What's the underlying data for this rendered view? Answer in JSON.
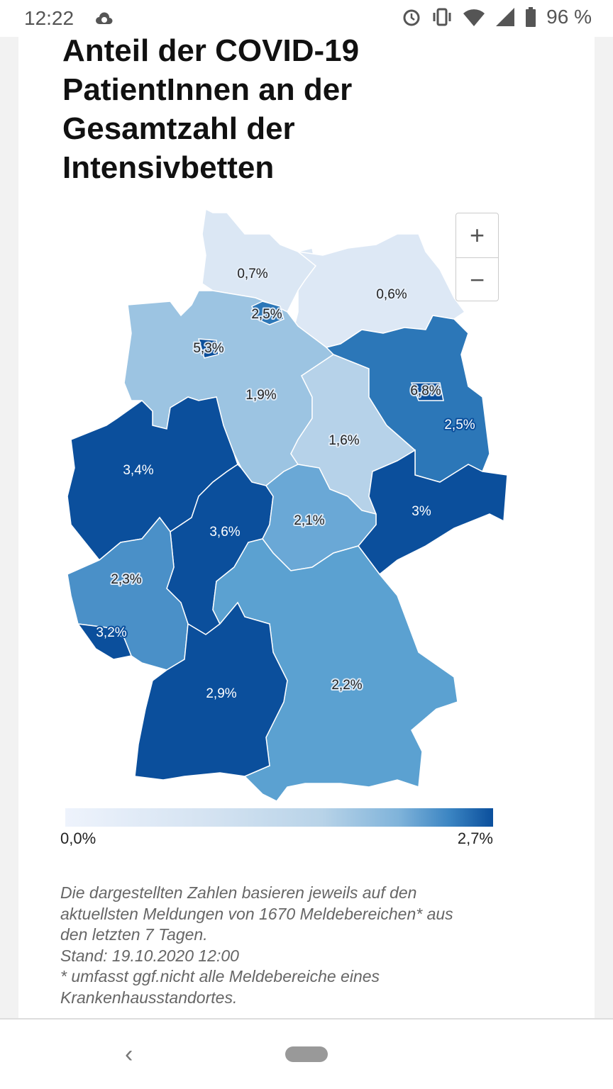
{
  "status_bar": {
    "time": "12:22",
    "battery": "96 %",
    "icons": [
      "cloud-icon",
      "alarm-icon",
      "vibrate-icon",
      "wifi-icon",
      "signal-icon",
      "battery-icon"
    ]
  },
  "title": "Anteil der COVID-19 PatientInnen an der Gesamtzahl der Intensivbetten",
  "zoom": {
    "in": "+",
    "out": "−"
  },
  "chart_data": {
    "type": "choropleth",
    "title": "Anteil der COVID-19 PatientInnen an der Gesamtzahl der Intensivbetten",
    "unit": "%",
    "color_scale": {
      "min_label": "0,0%",
      "max_label": "2,7%",
      "min": 0,
      "max": 2.7,
      "low_color": "#eef3fc",
      "high_color": "#0b4f9c"
    },
    "regions": [
      {
        "id": "schleswig-holstein",
        "label": "0,7%",
        "value": 0.7,
        "color": "#dbe7f4"
      },
      {
        "id": "mecklenburg-vorpommern",
        "label": "0,6%",
        "value": 0.6,
        "color": "#dde8f5"
      },
      {
        "id": "niedersachsen",
        "label": "1,9%",
        "value": 1.9,
        "color": "#9cc4e2"
      },
      {
        "id": "sachsen-anhalt",
        "label": "1,6%",
        "value": 1.6,
        "color": "#b6d2e9"
      },
      {
        "id": "brandenburg",
        "label": "2,5%",
        "value": 2.5,
        "color": "#2c77b8"
      },
      {
        "id": "sachsen",
        "label": "3%",
        "value": 3.0,
        "color": "#0b4f9c"
      },
      {
        "id": "nordrhein-westfalen",
        "label": "3,4%",
        "value": 3.4,
        "color": "#0b4f9c"
      },
      {
        "id": "hessen",
        "label": "3,6%",
        "value": 3.6,
        "color": "#0b4f9c"
      },
      {
        "id": "thueringen",
        "label": "2,1%",
        "value": 2.1,
        "color": "#6aa8d6"
      },
      {
        "id": "rheinland-pfalz",
        "label": "2,3%",
        "value": 2.3,
        "color": "#4a90c8"
      },
      {
        "id": "saarland",
        "label": "3,2%",
        "value": 3.2,
        "color": "#0b4f9c"
      },
      {
        "id": "bayern",
        "label": "2,2%",
        "value": 2.2,
        "color": "#5ba1d1"
      },
      {
        "id": "baden-wuerttemberg",
        "label": "2,9%",
        "value": 2.9,
        "color": "#0b4f9c"
      },
      {
        "id": "hamburg",
        "label": "2,5%",
        "value": 2.5,
        "color": "#2c77b8"
      },
      {
        "id": "bremen",
        "label": "5,3%",
        "value": 5.3,
        "color": "#0b4f9c"
      },
      {
        "id": "berlin",
        "label": "6,8%",
        "value": 6.8,
        "color": "#0b4f9c"
      }
    ]
  },
  "notes": [
    "Die dargestellten Zahlen basieren jeweils auf den",
    "aktuellsten Meldungen von 1670 Meldebereichen* aus",
    "den letzten 7 Tagen.",
    "Stand: 19.10.2020 12:00",
    "* umfasst ggf.nicht alle Meldebereiche eines",
    "Krankenhausstandortes."
  ],
  "nav": {
    "back": "‹"
  }
}
